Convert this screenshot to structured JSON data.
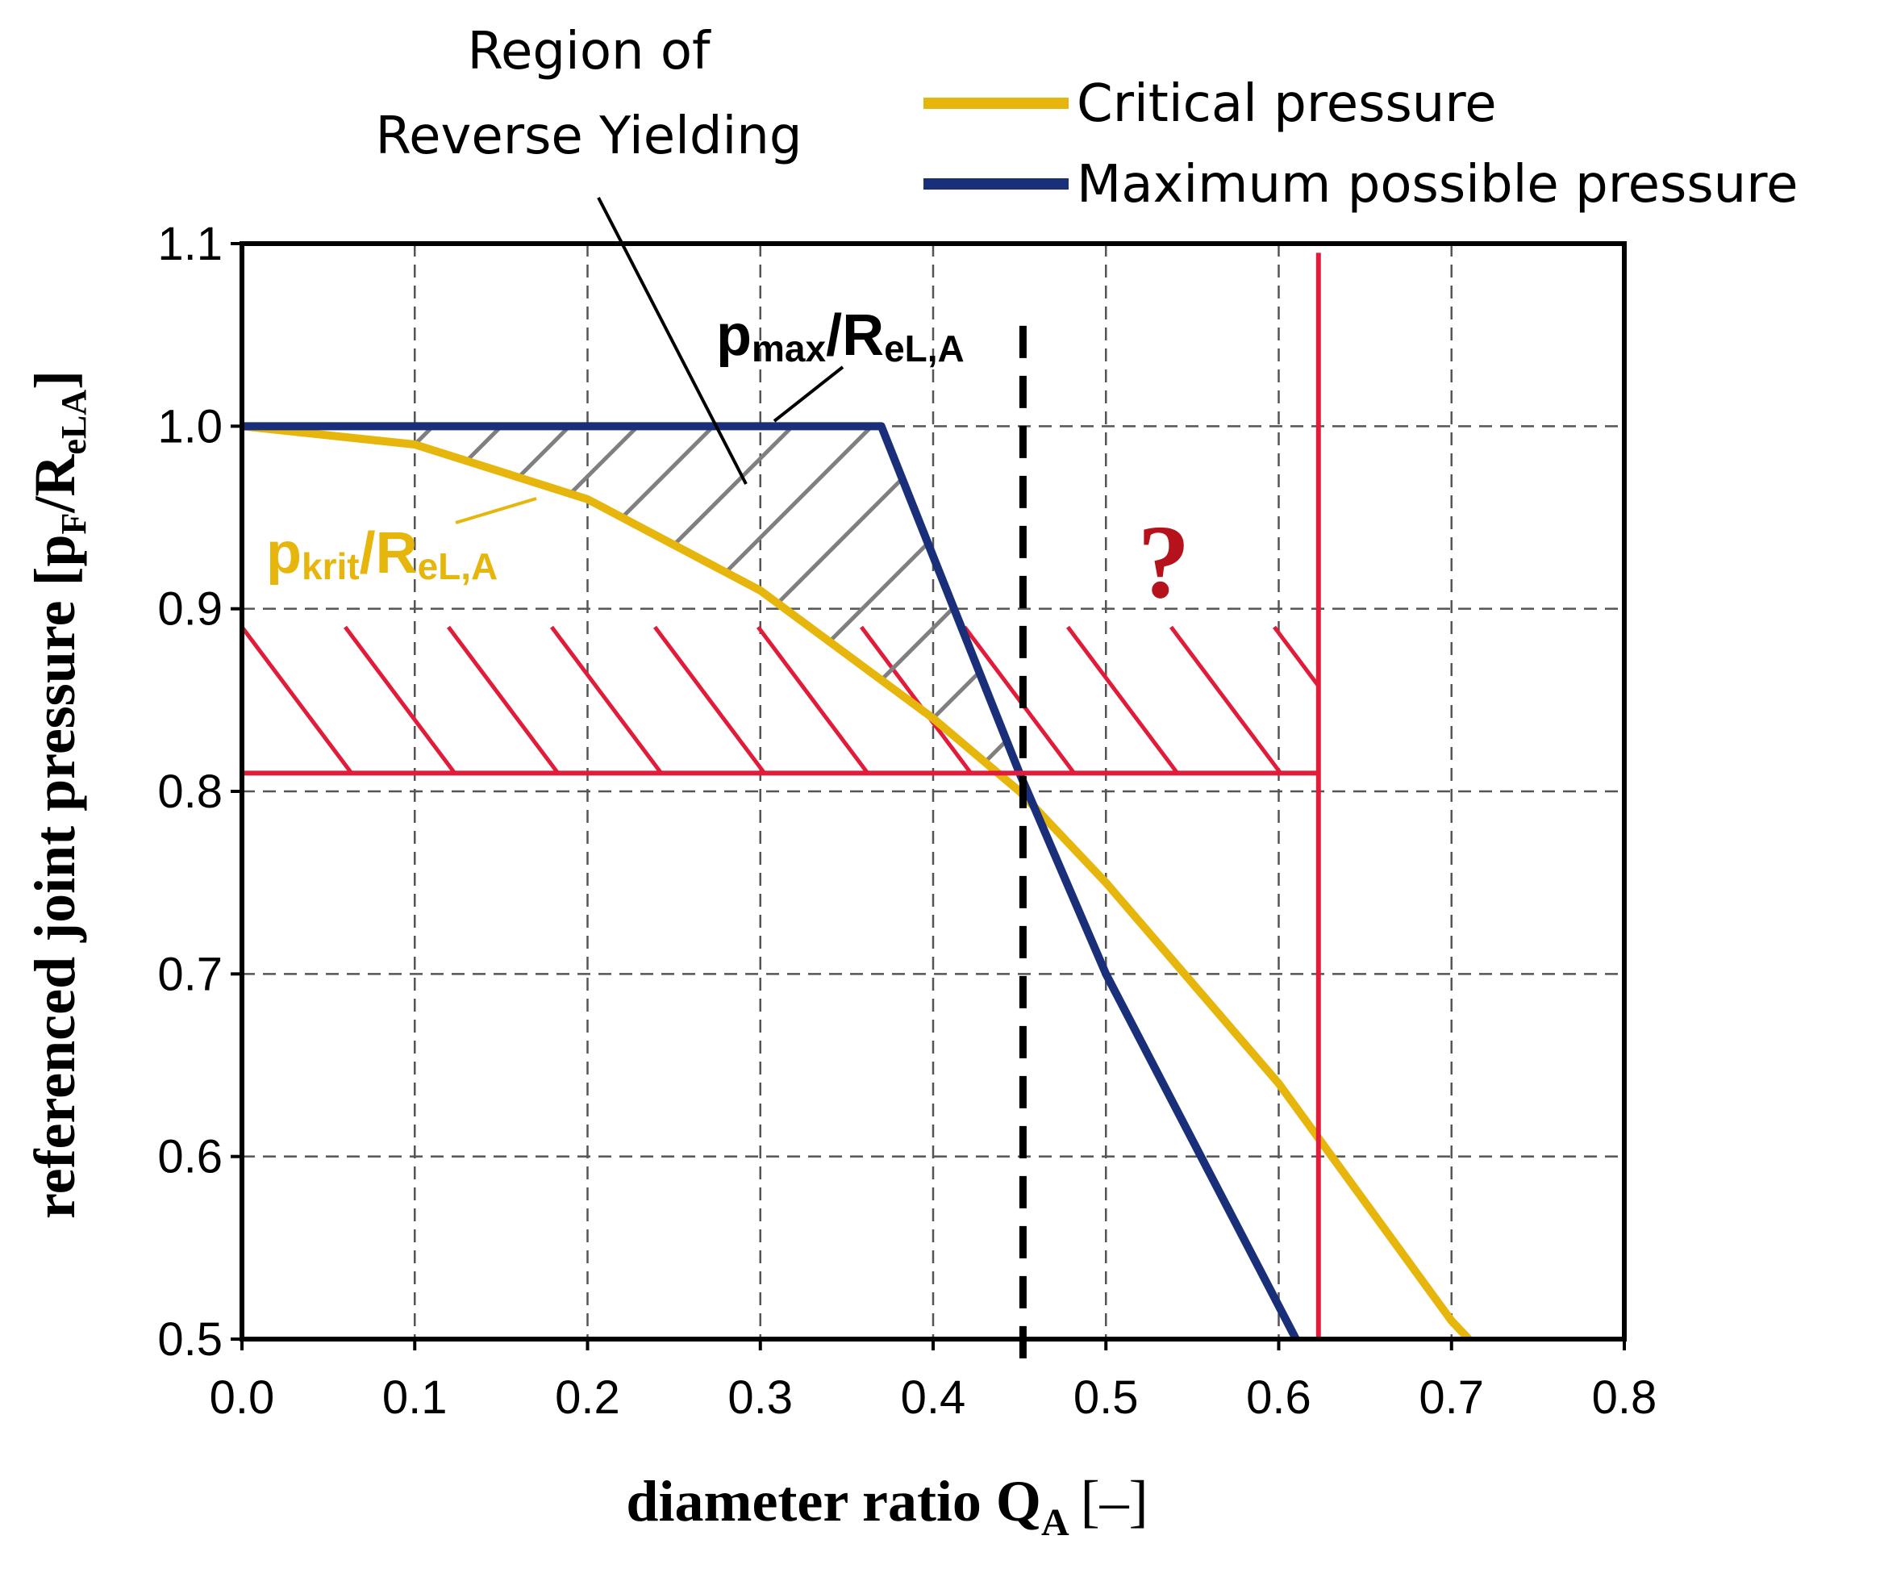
{
  "chart_data": {
    "type": "line",
    "title": "",
    "xlabel": "diameter ratio Q",
    "xlabel_sub": "A",
    "xlabel_unit": "[–]",
    "ylabel": "referenced joint pressure [p",
    "ylabel_sub1": "F",
    "ylabel_mid": "/R",
    "ylabel_sub2": "eLA",
    "ylabel_end": "]",
    "xlim": [
      0.0,
      0.8
    ],
    "ylim": [
      0.5,
      1.1
    ],
    "x_ticks": [
      0.0,
      0.1,
      0.2,
      0.3,
      0.4,
      0.5,
      0.6,
      0.7,
      0.8
    ],
    "x_tick_labels": [
      "0.0",
      "0.1",
      "0.2",
      "0.3",
      "0.4",
      "0.5",
      "0.6",
      "0.7",
      "0.8"
    ],
    "y_ticks": [
      0.5,
      0.6,
      0.7,
      0.8,
      0.9,
      1.0,
      1.1
    ],
    "y_tick_labels": [
      "0.5",
      "0.6",
      "0.7",
      "0.8",
      "0.9",
      "1.0",
      "1.1"
    ],
    "grid": true,
    "legend_position": "top-right",
    "series": [
      {
        "name": "Critical pressure",
        "color": "#E6B60C",
        "x": [
          0.0,
          0.1,
          0.2,
          0.3,
          0.4,
          0.45,
          0.5,
          0.6,
          0.7,
          0.71
        ],
        "y": [
          1.0,
          0.99,
          0.96,
          0.91,
          0.84,
          0.8,
          0.75,
          0.64,
          0.51,
          0.5
        ]
      },
      {
        "name": "Maximum possible pressure",
        "color": "#1A2F7A",
        "x": [
          0.0,
          0.37,
          0.45,
          0.5,
          0.61
        ],
        "y": [
          1.0,
          1.0,
          0.81,
          0.7,
          0.5
        ]
      }
    ],
    "reference_lines": {
      "dashed_vertical_x": 0.452,
      "red_vertical_x": 0.623,
      "red_horizontal_y": 0.81,
      "red_color": "#E31B3A",
      "dashed_color": "#000000"
    },
    "annotations": {
      "region_label_line1": "Region of",
      "region_label_line2": "Reverse Yielding",
      "pmax_main": "p",
      "pmax_sub": "max",
      "pmax_mid": "/R",
      "pmax_sub2": "eL,A",
      "pkrit_main": "p",
      "pkrit_sub": "krit",
      "pkrit_mid": "/R",
      "pkrit_sub2": "eL,A",
      "question_mark": "?",
      "pkrit_color": "#E6B60C",
      "question_color": "#B5121B",
      "hatch_gray_color": "#7F7F7F"
    }
  }
}
